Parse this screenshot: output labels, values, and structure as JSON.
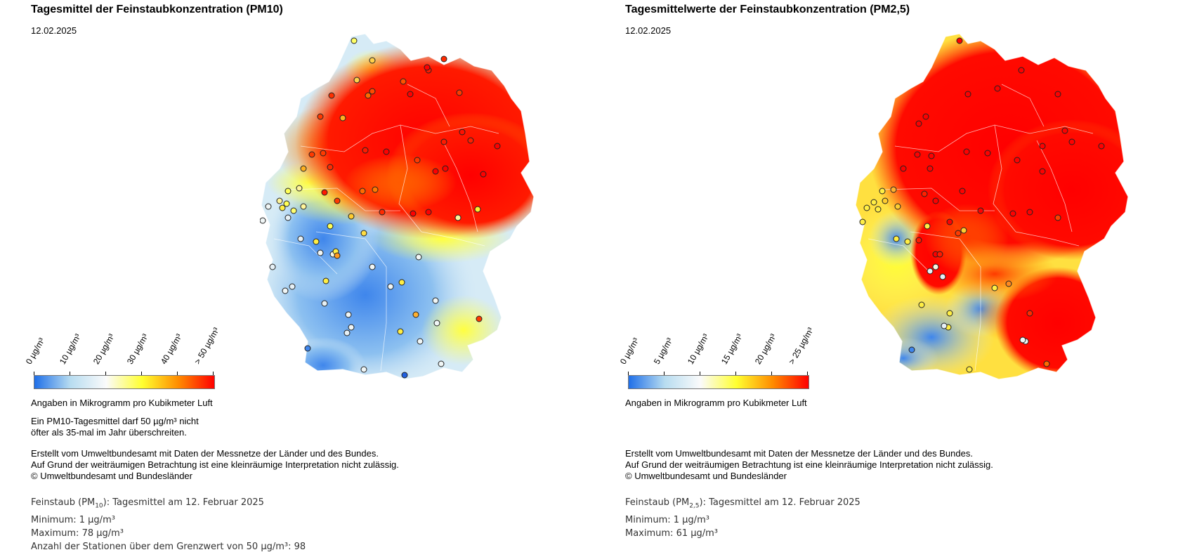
{
  "panels": [
    {
      "title": "Tagesmittel der Feinstaubkonzentration (PM10)",
      "date": "12.02.2025",
      "legend": {
        "ticks": [
          "0 µg/m³",
          "10 µg/m³",
          "20 µg/m³",
          "30 µg/m³",
          "40 µg/m³",
          "> 50 µg/m³"
        ],
        "unit_note": "Angaben in Mikrogramm pro Kubikmeter Luft",
        "colors": [
          "#1f6fe8",
          "#b7dcf0",
          "#fbfbfb",
          "#ffff30",
          "#ff8c00",
          "#ff0000"
        ]
      },
      "limit_note_1": "Ein PM10-Tagesmittel darf 50 µg/m³ nicht",
      "limit_note_2": "öfter als 35-mal im Jahr überschreiten.",
      "credit_1": "Erstellt vom Umweltbundesamt mit Daten der Messnetze der Länder und des Bundes.",
      "credit_2": "Auf Grund der weiträumigen Betrachtung ist eine kleinräumige Interpretation nicht zulässig.",
      "credit_3": "© Umweltbundesamt und Bundesländer",
      "stats": {
        "pollutant_prefix": "Feinstaub (PM",
        "pollutant_sub": "10",
        "pollutant_suffix": "): Tagesmittel am 12. Februar 2025",
        "minimum": "Minimum: 1 µg/m³",
        "maximum": "Maximum: 78 µg/m³",
        "exceedance": "Anzahl der Stationen über dem Grenzwert von 50 µg/m³: 98"
      }
    },
    {
      "title": "Tagesmittelwerte der Feinstaubkonzentration (PM2,5)",
      "date": "12.02.2025",
      "legend": {
        "ticks": [
          "0 µg/m³",
          "5 µg/m³",
          "10 µg/m³",
          "15 µg/m³",
          "20 µg/m³",
          "> 25 µg/m³"
        ],
        "unit_note": "Angaben in Mikrogramm pro Kubikmeter Luft",
        "colors": [
          "#1f6fe8",
          "#b7dcf0",
          "#fbfbfb",
          "#ffff30",
          "#ff8c00",
          "#ff0000"
        ]
      },
      "credit_1": "Erstellt vom Umweltbundesamt mit Daten der Messnetze der Länder und des Bundes.",
      "credit_2": "Auf Grund der weiträumigen Betrachtung ist eine kleinräumige Interpretation nicht zulässig.",
      "credit_3": "© Umweltbundesamt und Bundesländer",
      "stats": {
        "pollutant_prefix": "Feinstaub (PM",
        "pollutant_sub": "2,5",
        "pollutant_suffix": "): Tagesmittel am 12. Februar 2025",
        "minimum": "Minimum: 1 µg/m³",
        "maximum": "Maximum: 61 µg/m³"
      }
    }
  ]
}
